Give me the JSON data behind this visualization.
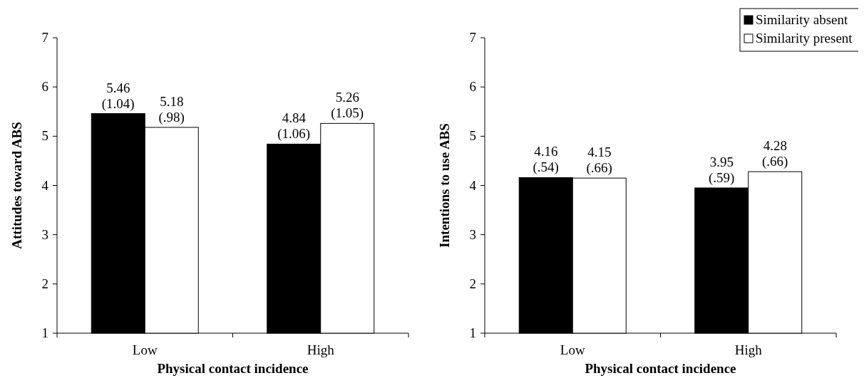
{
  "chart_data": [
    {
      "type": "bar",
      "xlabel": "Physical contact incidence",
      "ylabel": "Attitudes toward ABS",
      "categories": [
        "Low",
        "High"
      ],
      "ylim": [
        1,
        7
      ],
      "yticks": [
        1,
        2,
        3,
        4,
        5,
        6,
        7
      ],
      "legend": false,
      "series": [
        {
          "color": "#000000",
          "values": [
            5.46,
            4.84
          ],
          "value_labels": [
            "5.46\n(1.04)",
            "4.84\n(1.06)"
          ]
        },
        {
          "color": "#ffffff",
          "values": [
            5.18,
            5.26
          ],
          "value_labels": [
            "5.18\n(.98)",
            "5.26\n(1.05)"
          ]
        }
      ]
    },
    {
      "type": "bar",
      "xlabel": "Physical contact incidence",
      "ylabel": "Intentions to use ABS",
      "categories": [
        "Low",
        "High"
      ],
      "ylim": [
        1,
        7
      ],
      "yticks": [
        1,
        2,
        3,
        4,
        5,
        6,
        7
      ],
      "legend": "top right",
      "series": [
        {
          "name": "Similarity absent",
          "color": "#000000",
          "values": [
            4.16,
            3.95
          ],
          "value_labels": [
            "4.16\n(.54)",
            "3.95\n(.59)"
          ]
        },
        {
          "name": "Similarity present",
          "color": "#ffffff",
          "values": [
            4.15,
            4.28
          ],
          "value_labels": [
            "4.15\n(.66)",
            "4.28\n(.66)"
          ]
        }
      ]
    }
  ]
}
